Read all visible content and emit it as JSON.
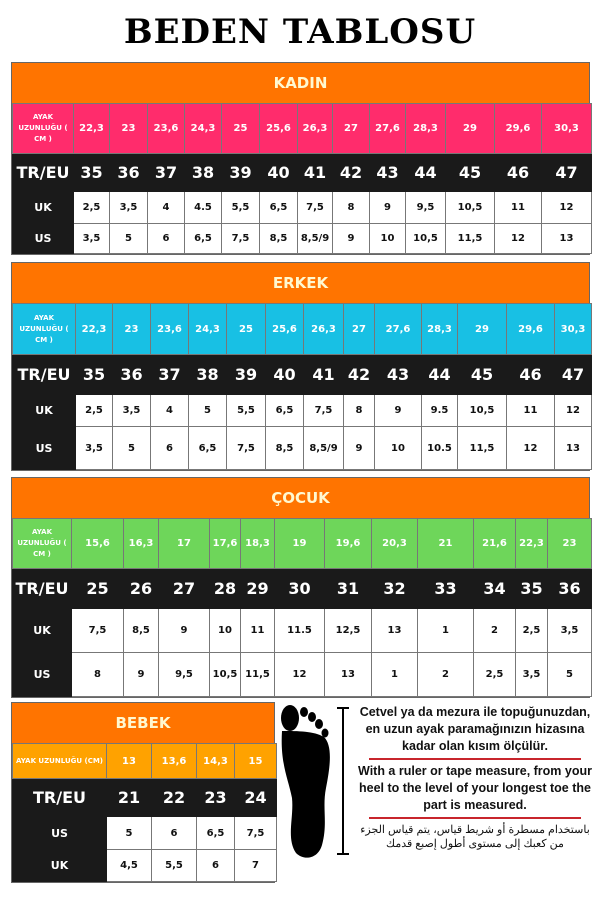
{
  "title": "BEDEN TABLOSU",
  "colors": {
    "header": "#ff7400",
    "kadin_cm": "#ff2c6c",
    "erkek_cm": "#18c0e4",
    "cocuk_cm": "#6ed65a",
    "bebek_cm": "#ffa200"
  },
  "row_labels": {
    "cm": "AYAK UZUNLUĞU ( CM )",
    "cm_bebek": "AYAK UZUNLUĞU (CM)",
    "eu": "TR/EU",
    "uk": "UK",
    "us": "US"
  },
  "tables": [
    {
      "name": "KADIN",
      "cm": [
        "22,3",
        "23",
        "23,6",
        "24,3",
        "25",
        "25,6",
        "26,3",
        "27",
        "27,6",
        "28,3",
        "29",
        "29,6",
        "30,3"
      ],
      "eu": [
        "35",
        "36",
        "37",
        "38",
        "39",
        "40",
        "41",
        "42",
        "43",
        "44",
        "45",
        "46",
        "47"
      ],
      "uk": [
        "2,5",
        "3,5",
        "4",
        "4.5",
        "5,5",
        "6,5",
        "7,5",
        "8",
        "9",
        "9,5",
        "10,5",
        "11",
        "12"
      ],
      "us": [
        "3,5",
        "5",
        "6",
        "6,5",
        "7,5",
        "8,5",
        "8,5/9",
        "9",
        "10",
        "10,5",
        "11,5",
        "12",
        "13"
      ]
    },
    {
      "name": "ERKEK",
      "cm": [
        "22,3",
        "23",
        "23,6",
        "24,3",
        "25",
        "25,6",
        "26,3",
        "27",
        "27,6",
        "28,3",
        "29",
        "29,6",
        "30,3"
      ],
      "eu": [
        "35",
        "36",
        "37",
        "38",
        "39",
        "40",
        "41",
        "42",
        "43",
        "44",
        "45",
        "46",
        "47"
      ],
      "uk": [
        "2,5",
        "3,5",
        "4",
        "5",
        "5,5",
        "6,5",
        "7,5",
        "8",
        "9",
        "9.5",
        "10,5",
        "11",
        "12"
      ],
      "us": [
        "3,5",
        "5",
        "6",
        "6,5",
        "7,5",
        "8,5",
        "8,5/9",
        "9",
        "10",
        "10.5",
        "11,5",
        "12",
        "13"
      ]
    },
    {
      "name": "ÇOCUK",
      "cm": [
        "15,6",
        "16,3",
        "17",
        "17,6",
        "18,3",
        "19",
        "19,6",
        "20,3",
        "21",
        "21,6",
        "22,3",
        "23"
      ],
      "eu": [
        "25",
        "26",
        "27",
        "28",
        "29",
        "30",
        "31",
        "32",
        "33",
        "34",
        "35",
        "36"
      ],
      "uk": [
        "7,5",
        "8,5",
        "9",
        "10",
        "11",
        "11.5",
        "12,5",
        "13",
        "1",
        "2",
        "2,5",
        "3,5"
      ],
      "us": [
        "8",
        "9",
        "9,5",
        "10,5",
        "11,5",
        "12",
        "13",
        "1",
        "2",
        "2,5",
        "3,5",
        "5"
      ]
    },
    {
      "name": "BEBEK",
      "cm": [
        "13",
        "13,6",
        "14,3",
        "15"
      ],
      "eu": [
        "21",
        "22",
        "23",
        "24"
      ],
      "us": [
        "5",
        "6",
        "6,5",
        "7,5"
      ],
      "uk": [
        "4,5",
        "5,5",
        "6",
        "7"
      ]
    }
  ],
  "instructions": {
    "tr": "Cetvel ya da mezura ile topuğunuzdan, en uzun ayak paramağınızın hizasına kadar olan kısım ölçülür.",
    "en": "With a ruler or tape measure, from your heel to the level of your longest toe the part is measured.",
    "ar": "باستخدام مسطرة أو شريط قياس، يتم قياس الجزء من كعبك إلى مستوى أطول إصبع قدمك"
  }
}
